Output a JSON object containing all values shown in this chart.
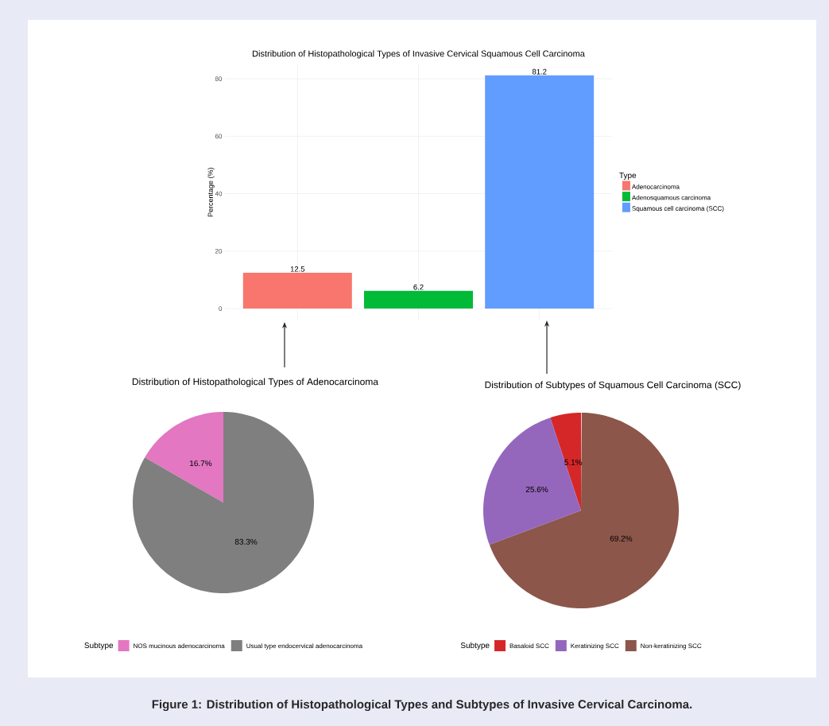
{
  "chart_data": [
    {
      "type": "bar",
      "title": "Distribution of Histopathological Types of Invasive Cervical Squamous Cell Carcinoma",
      "ylabel": "Percentage (%)",
      "legend_title": "Type",
      "categories": [
        null,
        null,
        null
      ],
      "series": [
        {
          "name": "Adenocarcinoma",
          "color": "#f8766d",
          "values": [
            12.5,
            null,
            null
          ]
        },
        {
          "name": "Adenosquamous carcinoma",
          "color": "#00ba38",
          "values": [
            null,
            6.2,
            null
          ]
        },
        {
          "name": "Squamous cell carcinoma (SCC)",
          "color": "#619cff",
          "values": [
            null,
            null,
            81.2
          ]
        }
      ],
      "ylim": [
        -4,
        85
      ],
      "yticks": [
        0,
        20,
        40,
        60,
        80
      ],
      "grid": true,
      "legend": "right",
      "data_labels": true
    },
    {
      "type": "pie",
      "title": "Distribution of Histopathological Types of Adenocarcinoma",
      "legend_title": "Subtype",
      "categories": [
        "NOS mucinous adenocarcinoma",
        "Usual type endocervical adenocarcinoma"
      ],
      "values": [
        16.7,
        83.3
      ],
      "colors": [
        "#e377c2",
        "#7f7f7f"
      ],
      "value_labels": [
        "16.7%",
        "83.3%"
      ],
      "legend": "bottom"
    },
    {
      "type": "pie",
      "title": "Distribution of Subtypes of Squamous Cell Carcinoma (SCC)",
      "legend_title": "Subtype",
      "categories": [
        "Basaloid SCC",
        "Keratinizing SCC",
        "Non-keratinizing SCC"
      ],
      "values": [
        5.1,
        25.6,
        69.2
      ],
      "colors": [
        "#d62728",
        "#9467bd",
        "#8c564b"
      ],
      "value_labels": [
        "5.1%",
        "25.6%",
        "69.2%"
      ],
      "legend": "bottom",
      "annotations": [
        "Figure 1: Distribution of Histopathological Types and Subtypes of Invasive Cervical Carcinoma."
      ]
    }
  ]
}
